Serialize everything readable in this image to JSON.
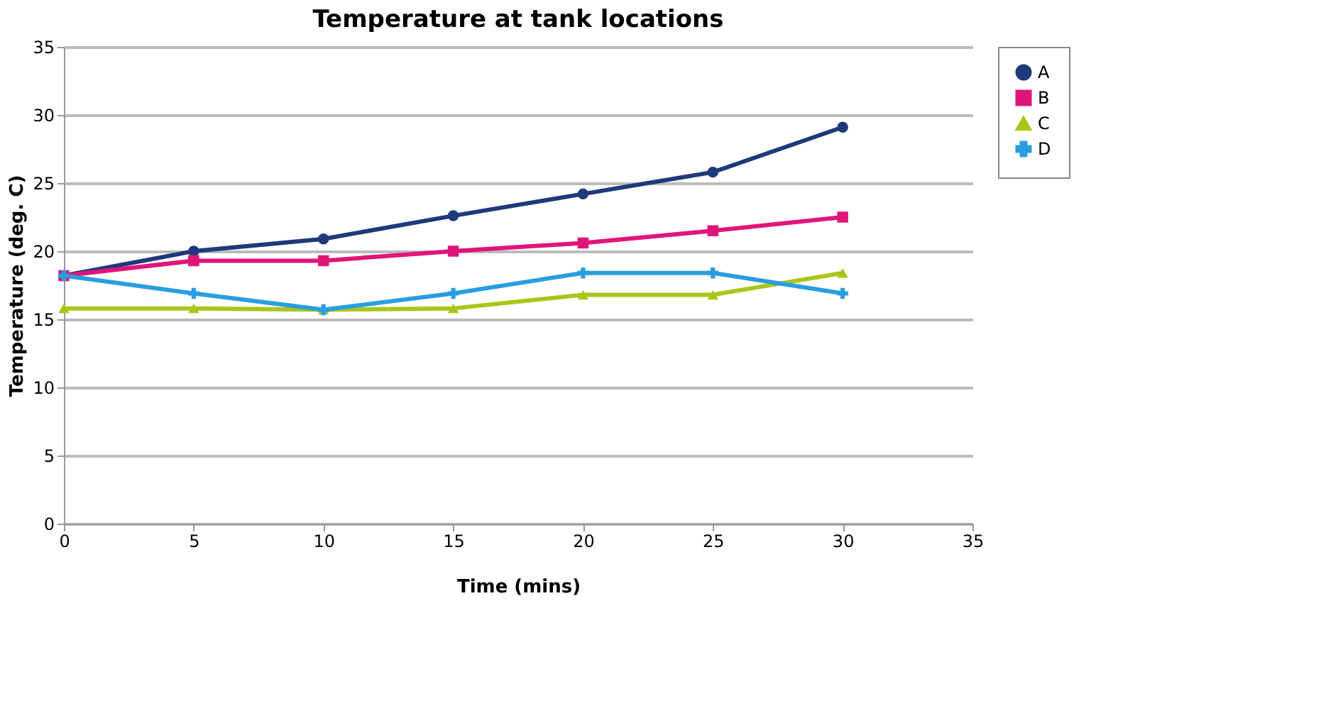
{
  "chart_data": {
    "type": "line",
    "title": "Temperature at tank locations",
    "xlabel": "Time (mins)",
    "ylabel": "Temperature (deg. C)",
    "x": [
      0,
      5,
      10,
      15,
      20,
      25,
      30
    ],
    "series": [
      {
        "name": "A",
        "color": "#1f3a7a",
        "marker": "circle",
        "values": [
          18.2,
          20,
          20.9,
          22.6,
          24.2,
          25.8,
          29.1
        ]
      },
      {
        "name": "B",
        "color": "#e0157a",
        "marker": "square",
        "values": [
          18.2,
          19.3,
          19.3,
          20,
          20.6,
          21.5,
          22.5
        ]
      },
      {
        "name": "C",
        "color": "#a8c61a",
        "marker": "triangle",
        "values": [
          15.8,
          15.8,
          15.7,
          15.8,
          16.8,
          16.8,
          18.4
        ]
      },
      {
        "name": "D",
        "color": "#2a9de0",
        "marker": "cross",
        "values": [
          18.2,
          16.9,
          15.7,
          16.9,
          18.4,
          18.4,
          16.9
        ]
      }
    ],
    "xlim": [
      0,
      35
    ],
    "xticks": [
      0,
      5,
      10,
      15,
      20,
      25,
      30,
      35
    ],
    "ylim": [
      0,
      35
    ],
    "yticks": [
      0,
      5,
      10,
      15,
      20,
      25,
      30,
      35
    ],
    "grid": "y",
    "legend": "right"
  }
}
